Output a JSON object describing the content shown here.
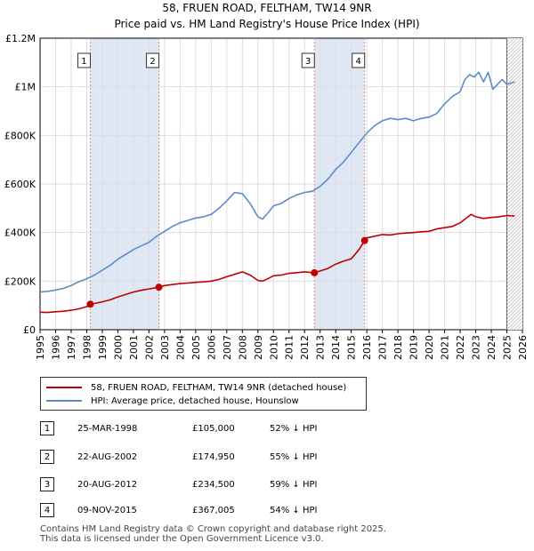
{
  "header": {
    "title": "58, FRUEN ROAD, FELTHAM, TW14 9NR",
    "subtitle": "Price paid vs. HM Land Registry's House Price Index (HPI)"
  },
  "colors": {
    "property_line": "#c00000",
    "hpi_line": "#5b8cc8",
    "shade": "#dfe7f5",
    "grid": "#dddddd",
    "marker_line": "#ee8888"
  },
  "legend": {
    "property": "58, FRUEN ROAD, FELTHAM, TW14 9NR (detached house)",
    "hpi": "HPI: Average price, detached house, Hounslow"
  },
  "transactions": [
    {
      "num": "1",
      "date": "25-MAR-1998",
      "price": "£105,000",
      "hpi_diff": "52% ↓ HPI"
    },
    {
      "num": "2",
      "date": "22-AUG-2002",
      "price": "£174,950",
      "hpi_diff": "55% ↓ HPI"
    },
    {
      "num": "3",
      "date": "20-AUG-2012",
      "price": "£234,500",
      "hpi_diff": "59% ↓ HPI"
    },
    {
      "num": "4",
      "date": "09-NOV-2015",
      "price": "£367,005",
      "hpi_diff": "54% ↓ HPI"
    }
  ],
  "footer": {
    "line1": "Contains HM Land Registry data © Crown copyright and database right 2025.",
    "line2": "This data is licensed under the Open Government Licence v3.0."
  },
  "chart_data": {
    "type": "line",
    "title": "58, FRUEN ROAD, FELTHAM, TW14 9NR",
    "subtitle": "Price paid vs. HM Land Registry's House Price Index (HPI)",
    "xlabel": "",
    "ylabel": "",
    "xlim": [
      1995,
      2026
    ],
    "ylim": [
      0,
      1200000
    ],
    "y_ticks": [
      {
        "value": 0,
        "label": "£0"
      },
      {
        "value": 200000,
        "label": "£200K"
      },
      {
        "value": 400000,
        "label": "£400K"
      },
      {
        "value": 600000,
        "label": "£600K"
      },
      {
        "value": 800000,
        "label": "£800K"
      },
      {
        "value": 1000000,
        "label": "£1M"
      },
      {
        "value": 1200000,
        "label": "£1.2M"
      }
    ],
    "x_ticks": [
      "1995",
      "1996",
      "1997",
      "1998",
      "1999",
      "2000",
      "2001",
      "2002",
      "2003",
      "2004",
      "2005",
      "2006",
      "2007",
      "2008",
      "2009",
      "2010",
      "2011",
      "2012",
      "2013",
      "2014",
      "2015",
      "2016",
      "2017",
      "2018",
      "2019",
      "2020",
      "2021",
      "2022",
      "2023",
      "2024",
      "2025",
      "2026"
    ],
    "grid": true,
    "legend_position": "below",
    "shaded_periods": [
      [
        1998.23,
        2002.64
      ],
      [
        2012.63,
        2015.86
      ]
    ],
    "hatched_region_start": 2025.0,
    "sales": [
      {
        "label": "1",
        "x": 1998.23,
        "y": 105000
      },
      {
        "label": "2",
        "x": 2002.64,
        "y": 174950
      },
      {
        "label": "3",
        "x": 2012.63,
        "y": 234500
      },
      {
        "label": "4",
        "x": 2015.86,
        "y": 367005
      }
    ],
    "series": [
      {
        "name": "58, FRUEN ROAD, FELTHAM, TW14 9NR (detached house)",
        "color": "#c00000",
        "x": [
          1995.0,
          1995.5,
          1996.0,
          1996.5,
          1997.0,
          1997.5,
          1998.0,
          1998.23,
          1998.5,
          1999.0,
          1999.5,
          2000.0,
          2000.5,
          2001.0,
          2001.5,
          2002.0,
          2002.64,
          2003.0,
          2003.5,
          2004.0,
          2004.5,
          2005.0,
          2005.5,
          2006.0,
          2006.5,
          2007.0,
          2007.5,
          2008.0,
          2008.5,
          2009.0,
          2009.3,
          2009.7,
          2010.0,
          2010.5,
          2011.0,
          2011.5,
          2012.0,
          2012.63,
          2013.0,
          2013.5,
          2014.0,
          2014.5,
          2015.0,
          2015.5,
          2015.86,
          2016.0,
          2016.5,
          2017.0,
          2017.5,
          2018.0,
          2018.5,
          2019.0,
          2019.5,
          2020.0,
          2020.5,
          2021.0,
          2021.5,
          2022.0,
          2022.4,
          2022.7,
          2023.0,
          2023.5,
          2024.0,
          2024.5,
          2025.0,
          2025.5
        ],
        "y": [
          72000,
          71000,
          74000,
          76000,
          80000,
          86000,
          95000,
          105000,
          108000,
          115000,
          123000,
          135000,
          145000,
          155000,
          162000,
          168000,
          174950,
          182000,
          186000,
          190000,
          192000,
          195000,
          197000,
          200000,
          207000,
          218000,
          228000,
          238000,
          225000,
          203000,
          200000,
          212000,
          222000,
          225000,
          232000,
          235000,
          238000,
          234500,
          242000,
          252000,
          270000,
          282000,
          292000,
          330000,
          367005,
          378000,
          385000,
          392000,
          390000,
          395000,
          398000,
          400000,
          403000,
          405000,
          415000,
          420000,
          425000,
          440000,
          460000,
          475000,
          465000,
          458000,
          462000,
          465000,
          470000,
          468000
        ]
      },
      {
        "name": "HPI: Average price, detached house, Hounslow",
        "color": "#5b8cc8",
        "x": [
          1995.0,
          1995.5,
          1996.0,
          1996.5,
          1997.0,
          1997.5,
          1998.0,
          1998.5,
          1999.0,
          1999.5,
          2000.0,
          2000.5,
          2001.0,
          2001.5,
          2002.0,
          2002.5,
          2003.0,
          2003.5,
          2004.0,
          2004.5,
          2005.0,
          2005.5,
          2006.0,
          2006.5,
          2007.0,
          2007.5,
          2008.0,
          2008.5,
          2009.0,
          2009.3,
          2009.7,
          2010.0,
          2010.5,
          2011.0,
          2011.5,
          2012.0,
          2012.5,
          2013.0,
          2013.5,
          2014.0,
          2014.5,
          2015.0,
          2015.5,
          2016.0,
          2016.5,
          2017.0,
          2017.5,
          2018.0,
          2018.5,
          2019.0,
          2019.5,
          2020.0,
          2020.5,
          2021.0,
          2021.5,
          2022.0,
          2022.3,
          2022.6,
          2022.9,
          2023.2,
          2023.5,
          2023.8,
          2024.1,
          2024.4,
          2024.7,
          2025.0,
          2025.5
        ],
        "y": [
          155000,
          158000,
          163000,
          170000,
          182000,
          198000,
          210000,
          225000,
          245000,
          265000,
          290000,
          310000,
          330000,
          345000,
          360000,
          385000,
          405000,
          425000,
          440000,
          450000,
          460000,
          465000,
          475000,
          500000,
          530000,
          565000,
          560000,
          520000,
          465000,
          455000,
          485000,
          510000,
          520000,
          540000,
          555000,
          565000,
          570000,
          590000,
          620000,
          660000,
          690000,
          730000,
          770000,
          810000,
          840000,
          860000,
          870000,
          865000,
          870000,
          860000,
          870000,
          875000,
          890000,
          930000,
          960000,
          980000,
          1030000,
          1050000,
          1040000,
          1060000,
          1020000,
          1060000,
          990000,
          1010000,
          1030000,
          1010000,
          1020000
        ]
      }
    ]
  }
}
